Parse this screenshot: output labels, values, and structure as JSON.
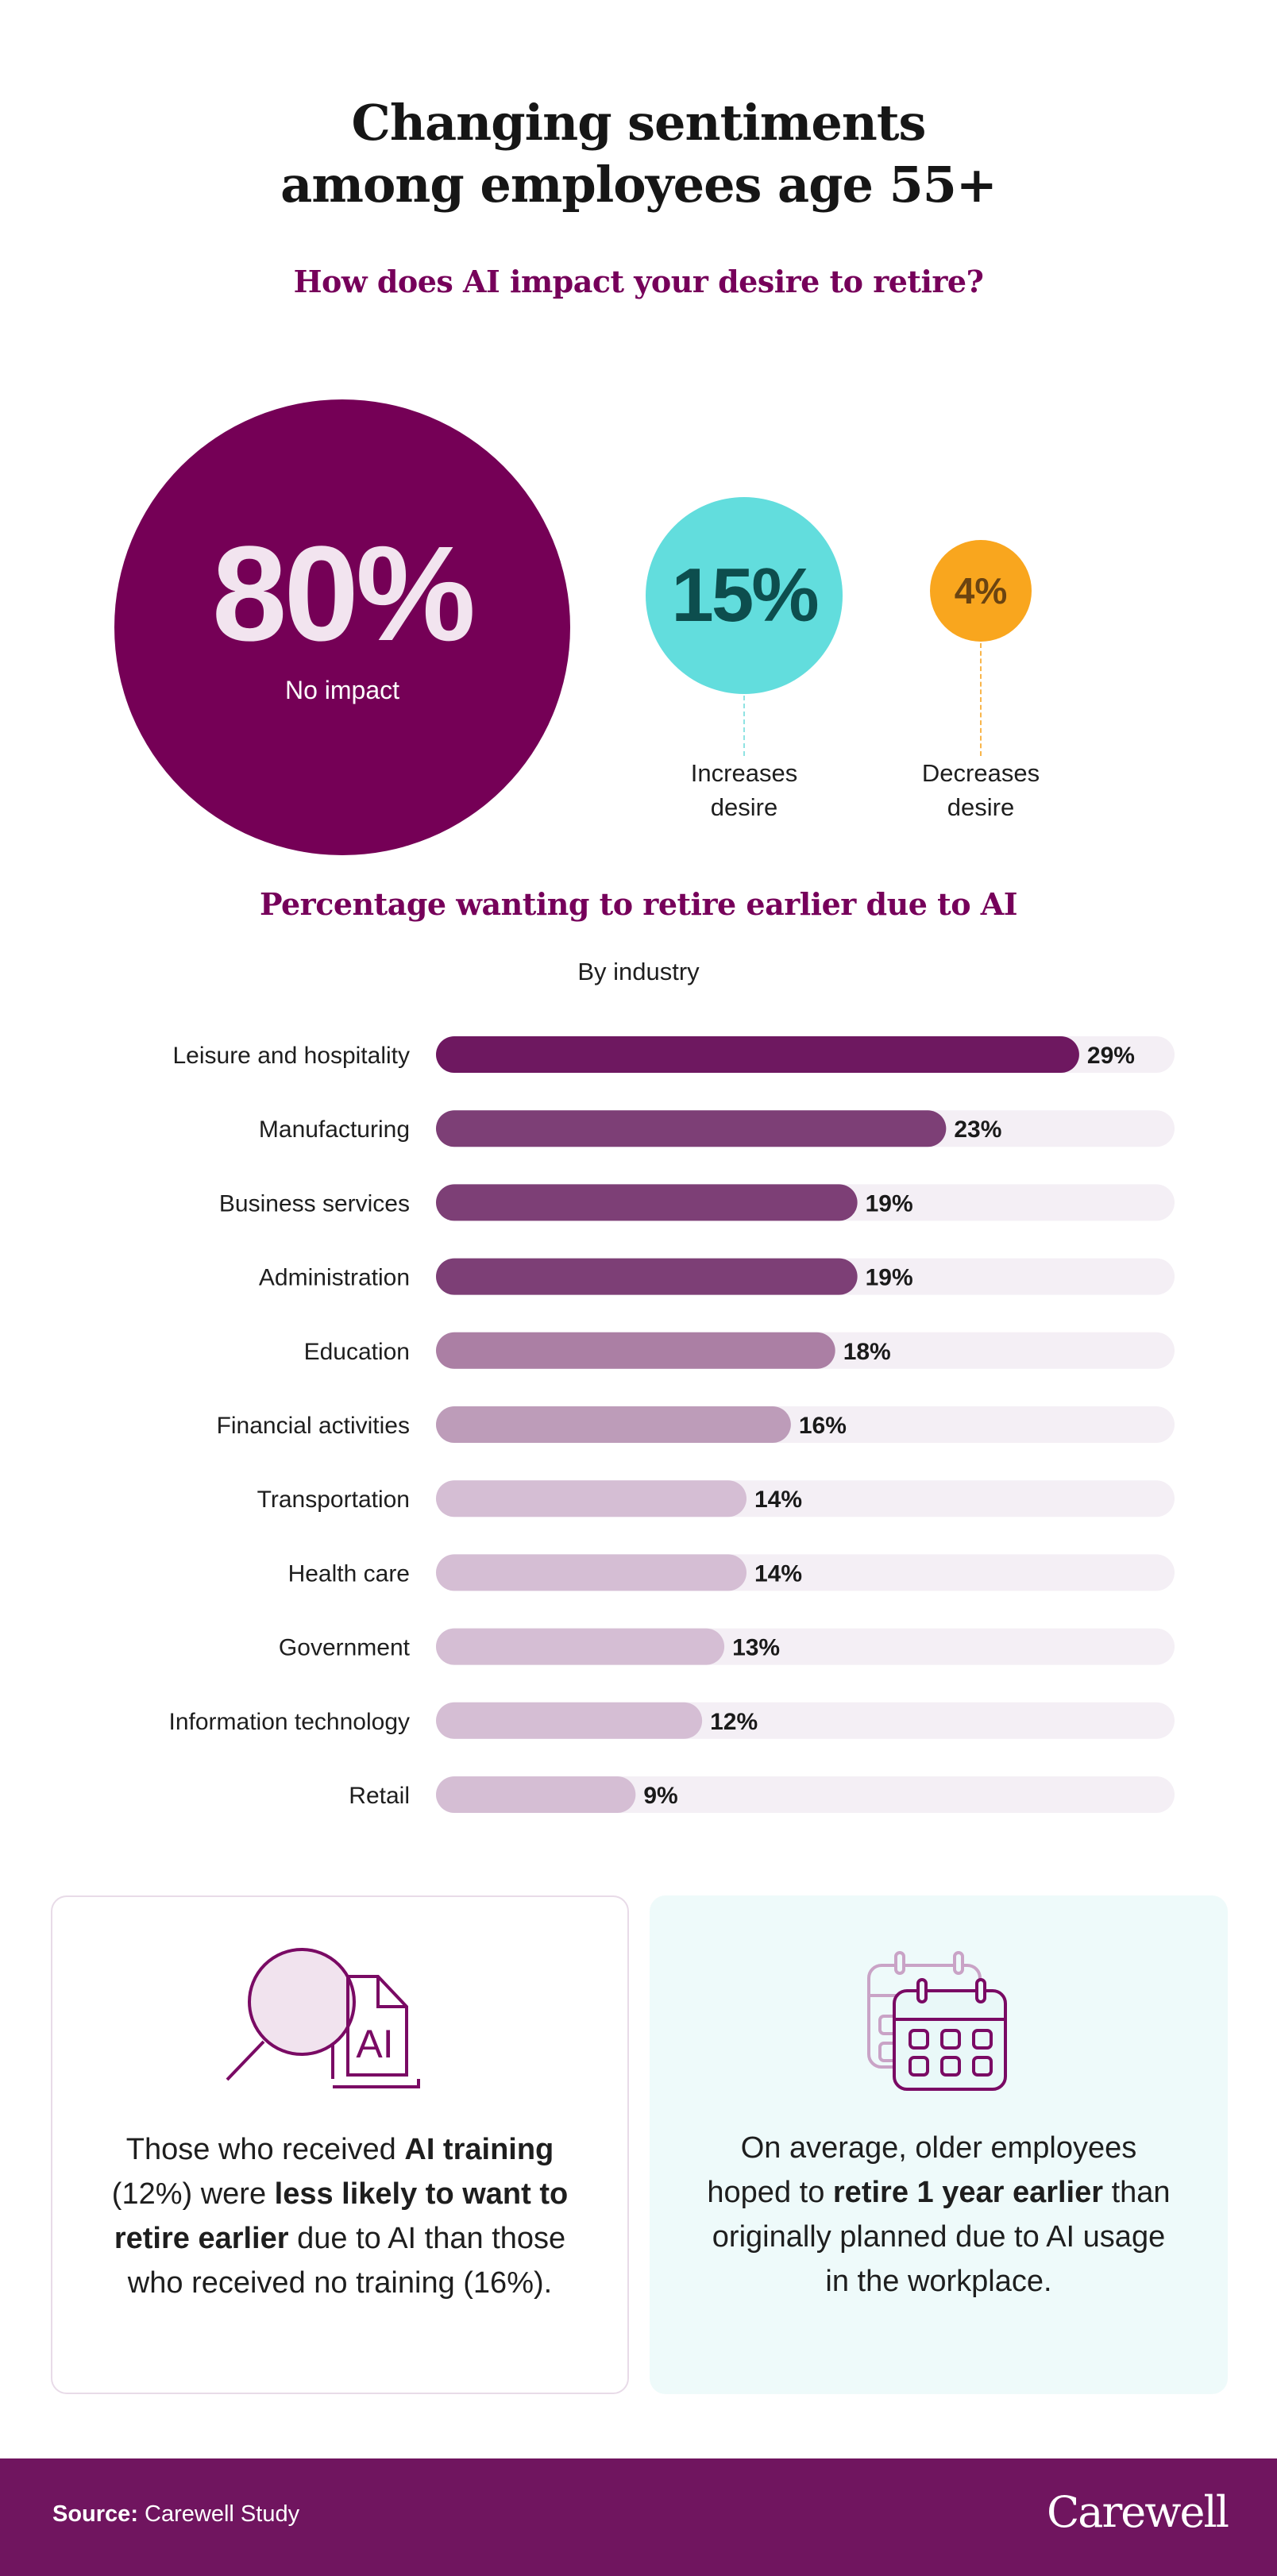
{
  "header": {
    "title_line1": "Changing sentiments",
    "title_line2": "among employees age 55+"
  },
  "impact": {
    "question": "How does AI impact your desire to retire?",
    "items": [
      {
        "value": "80%",
        "label": "No impact",
        "color": "#750056",
        "text_color": "#f2e4ef"
      },
      {
        "value": "15%",
        "label_line1": "Increases",
        "label_line2": "desire",
        "color": "#62dddd",
        "text_color": "#0d4e4e"
      },
      {
        "value": "4%",
        "label_line1": "Decreases",
        "label_line2": "desire",
        "color": "#f9a61e",
        "text_color": "#6b4411"
      }
    ]
  },
  "chart_data": {
    "type": "bar",
    "orientation": "horizontal",
    "title": "Percentage wanting to retire earlier due to AI",
    "subtitle": "By industry",
    "categories": [
      "Leisure and hospitality",
      "Manufacturing",
      "Business services",
      "Administration",
      "Education",
      "Financial activities",
      "Transportation",
      "Health care",
      "Government",
      "Information technology",
      "Retail"
    ],
    "values": [
      29,
      23,
      19,
      19,
      18,
      16,
      14,
      14,
      13,
      12,
      9
    ],
    "value_labels": [
      "29%",
      "23%",
      "19%",
      "19%",
      "18%",
      "16%",
      "14%",
      "14%",
      "13%",
      "12%",
      "9%"
    ],
    "bar_colors": [
      "#6e1860",
      "#7d3f76",
      "#7d3f76",
      "#7d3f76",
      "#ab7fa4",
      "#bd9cb9",
      "#d5bed4",
      "#d5bed4",
      "#d5bed4",
      "#d5bed4",
      "#d5bed4"
    ],
    "track_color": "#f4eff5",
    "xlim": [
      0,
      33.3
    ],
    "unit": "%",
    "grid": false,
    "legend": "none"
  },
  "cards": [
    {
      "icon": "magnifier-ai-document-icon",
      "icon_text": "AI",
      "parts": [
        {
          "t": "Those who received ",
          "b": false
        },
        {
          "t": "AI training",
          "b": true
        },
        {
          "t": " (12%) were ",
          "b": false
        },
        {
          "t": "less likely to want to retire earlier",
          "b": true
        },
        {
          "t": " due to AI than those who received no training (16%).",
          "b": false
        }
      ]
    },
    {
      "icon": "calendar-icon",
      "parts": [
        {
          "t": "On average, older employees hoped to ",
          "b": false
        },
        {
          "t": "retire 1 year earlier",
          "b": true
        },
        {
          "t": " than originally planned due to AI usage in the workplace.",
          "b": false
        }
      ]
    }
  ],
  "footer": {
    "source_label": "Source:",
    "source_value": "Carewell Study",
    "brand": "Carewell",
    "bg_color": "#70155f"
  }
}
